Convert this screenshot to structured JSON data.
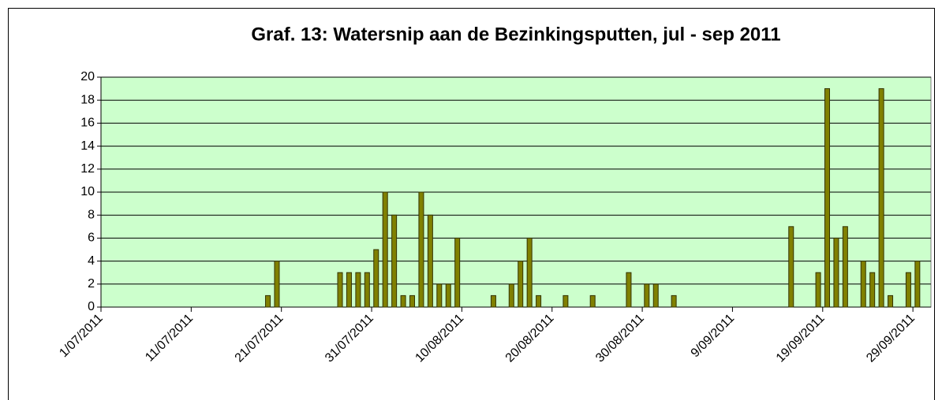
{
  "chart_data": {
    "type": "bar",
    "title": "Graf. 13: Watersnip aan de Bezinkingsputten, jul - sep 2011",
    "x": [
      "2011-07-19",
      "2011-07-20",
      "2011-07-27",
      "2011-07-28",
      "2011-07-29",
      "2011-07-30",
      "2011-07-31",
      "2011-08-01",
      "2011-08-02",
      "2011-08-03",
      "2011-08-04",
      "2011-08-05",
      "2011-08-06",
      "2011-08-07",
      "2011-08-08",
      "2011-08-09",
      "2011-08-13",
      "2011-08-15",
      "2011-08-16",
      "2011-08-17",
      "2011-08-18",
      "2011-08-21",
      "2011-08-24",
      "2011-08-28",
      "2011-08-30",
      "2011-08-31",
      "2011-09-02",
      "2011-09-15",
      "2011-09-18",
      "2011-09-19",
      "2011-09-20",
      "2011-09-21",
      "2011-09-23",
      "2011-09-24",
      "2011-09-25",
      "2011-09-26",
      "2011-09-28",
      "2011-09-29"
    ],
    "values": [
      1,
      4,
      3,
      3,
      3,
      3,
      5,
      10,
      8,
      1,
      1,
      10,
      8,
      2,
      2,
      6,
      1,
      2,
      4,
      6,
      1,
      1,
      1,
      3,
      2,
      2,
      1,
      7,
      3,
      19,
      6,
      7,
      4,
      3,
      19,
      1,
      3,
      4
    ],
    "color": "#808000",
    "xlim": [
      "2011-07-01",
      "2011-10-01"
    ],
    "xticks": [
      {
        "value": "2011-07-01",
        "label": "1/07/2011"
      },
      {
        "value": "2011-07-11",
        "label": "11/07/2011"
      },
      {
        "value": "2011-07-21",
        "label": "21/07/2011"
      },
      {
        "value": "2011-07-31",
        "label": "31/07/2011"
      },
      {
        "value": "2011-08-10",
        "label": "10/08/2011"
      },
      {
        "value": "2011-08-20",
        "label": "20/08/2011"
      },
      {
        "value": "2011-08-30",
        "label": "30/08/2011"
      },
      {
        "value": "2011-09-09",
        "label": "9/09/2011"
      },
      {
        "value": "2011-09-19",
        "label": "19/09/2011"
      },
      {
        "value": "2011-09-29",
        "label": "29/09/2011"
      }
    ],
    "ylim": [
      0,
      20
    ],
    "yticks": [
      0,
      2,
      4,
      6,
      8,
      10,
      12,
      14,
      16,
      18,
      20
    ],
    "grid": true
  }
}
